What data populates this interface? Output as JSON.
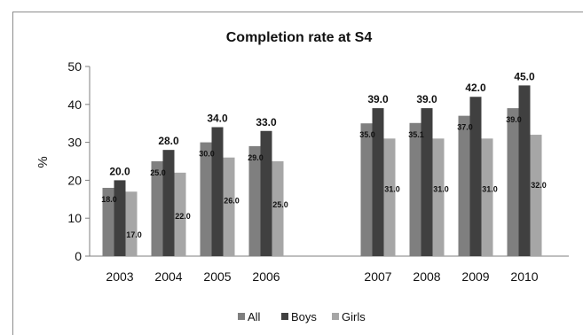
{
  "chart_data": {
    "type": "bar",
    "title": "Completion rate at S4",
    "ylabel": "%",
    "xlabel": "",
    "ylim": [
      0,
      50
    ],
    "yticks": [
      0,
      10,
      20,
      30,
      40,
      50
    ],
    "grid": false,
    "legend": "bottom",
    "categories": [
      "2003",
      "2004",
      "2005",
      "2006",
      "2007",
      "2008",
      "2009",
      "2010"
    ],
    "series": [
      {
        "name": "All",
        "color": "#7f7f7f",
        "values": [
          18.0,
          25.0,
          30.0,
          29.0,
          35.0,
          35.1,
          37.0,
          39.0
        ],
        "labels": [
          "18.0",
          "25.0",
          "30.0",
          "29.0",
          "35.0",
          "35.1",
          "37.0",
          "39.0"
        ]
      },
      {
        "name": "Boys",
        "color": "#404040",
        "values": [
          20.0,
          28.0,
          34.0,
          33.0,
          39.0,
          39.0,
          42.0,
          45.0
        ],
        "labels": [
          "20.0",
          "28.0",
          "34.0",
          "33.0",
          "39.0",
          "39.0",
          "42.0",
          "45.0"
        ]
      },
      {
        "name": "Girls",
        "color": "#a6a6a6",
        "values": [
          17.0,
          22.0,
          26.0,
          25.0,
          31.0,
          31.0,
          31.0,
          32.0
        ],
        "labels": [
          "17.0",
          "22.0",
          "26.0",
          "25.0",
          "31.0",
          "31.0",
          "31.0",
          "32.0"
        ]
      }
    ]
  }
}
